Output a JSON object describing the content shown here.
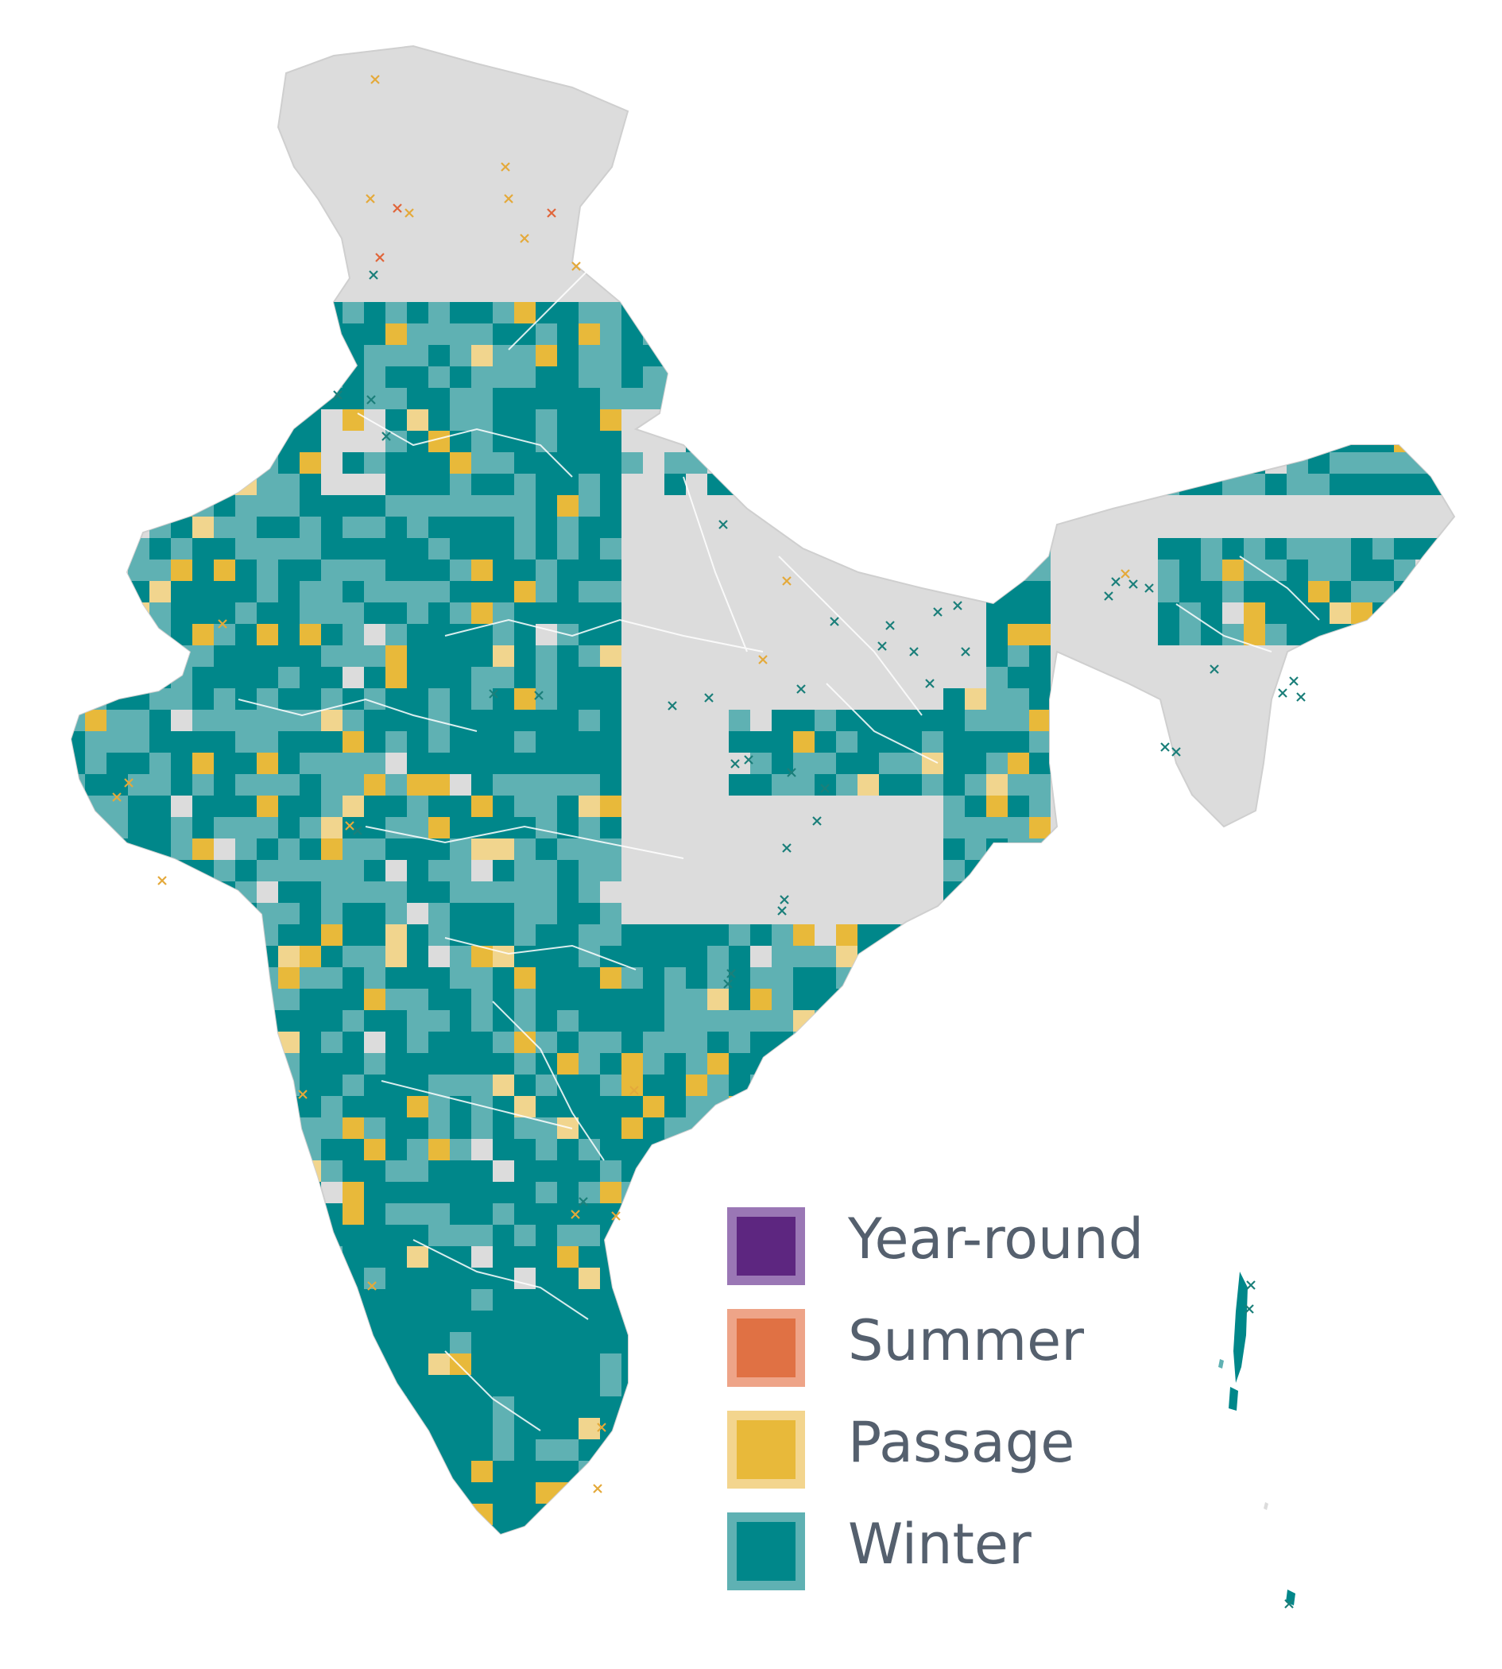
{
  "map": {
    "colors": {
      "land": "#dcdcdc",
      "border": "#ffffff",
      "winter_strong": "#00878a",
      "winter_light": "#5fb1b3",
      "passage_strong": "#e8b93a",
      "passage_light": "#f1d58e",
      "summer": "#e07144",
      "year_round": "#5d2680",
      "marker_winter": "#1b7f7a",
      "marker_passage": "#e4a93a",
      "marker_summer": "#e0653a"
    }
  },
  "legend": {
    "items": [
      {
        "label": "Year-round",
        "fill": "#5d2680",
        "border": "#9a77b5"
      },
      {
        "label": "Summer",
        "fill": "#e07144",
        "border": "#eea488"
      },
      {
        "label": "Passage",
        "fill": "#e8b93a",
        "border": "#f3d58e"
      },
      {
        "label": "Winter",
        "fill": "#00878a",
        "border": "#5fb1b3"
      }
    ]
  }
}
